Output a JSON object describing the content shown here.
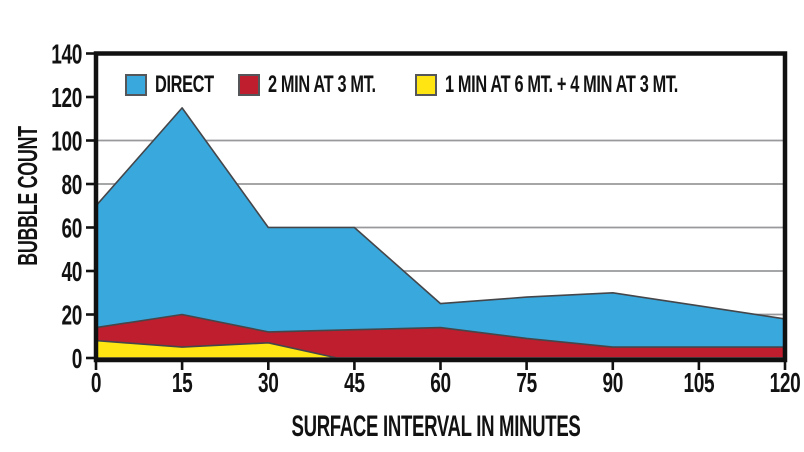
{
  "chart_data": {
    "type": "area",
    "title": "",
    "xlabel": "SURFACE INTERVAL IN MINUTES",
    "ylabel": "BUBBLE COUNT",
    "xlim": [
      0,
      120
    ],
    "ylim": [
      0,
      140
    ],
    "x_ticks": [
      0,
      15,
      30,
      45,
      60,
      75,
      90,
      105,
      120
    ],
    "y_ticks": [
      0,
      20,
      40,
      60,
      80,
      100,
      120,
      140
    ],
    "gridlines_y": [
      20,
      40,
      60,
      80,
      100
    ],
    "grid_on": true,
    "legend_position": "top-left-inside",
    "colors": {
      "background": "#ffffff",
      "axis": "#111111",
      "grid": "#98999b",
      "outline": "#45464a",
      "text": "#121212",
      "swatch_border": "#55565a"
    },
    "series": [
      {
        "name": "DIRECT",
        "color": "#39A8DC",
        "points": [
          [
            0,
            70
          ],
          [
            15,
            115
          ],
          [
            30,
            60
          ],
          [
            45,
            60
          ],
          [
            60,
            25
          ],
          [
            75,
            28
          ],
          [
            90,
            30
          ],
          [
            105,
            24
          ],
          [
            120,
            18
          ]
        ]
      },
      {
        "name": "2 MIN AT 3 MT.",
        "color": "#BE1E2D",
        "points": [
          [
            0,
            14
          ],
          [
            15,
            20
          ],
          [
            30,
            12
          ],
          [
            45,
            13
          ],
          [
            60,
            14
          ],
          [
            75,
            9
          ],
          [
            90,
            5
          ],
          [
            105,
            5
          ],
          [
            120,
            5
          ]
        ]
      },
      {
        "name": "1 MIN AT 6 MT. + 4 MIN AT 3 MT.",
        "color": "#FFE612",
        "points": [
          [
            0,
            8
          ],
          [
            15,
            5
          ],
          [
            30,
            7
          ],
          [
            42,
            0
          ],
          [
            120,
            0
          ]
        ]
      }
    ]
  }
}
